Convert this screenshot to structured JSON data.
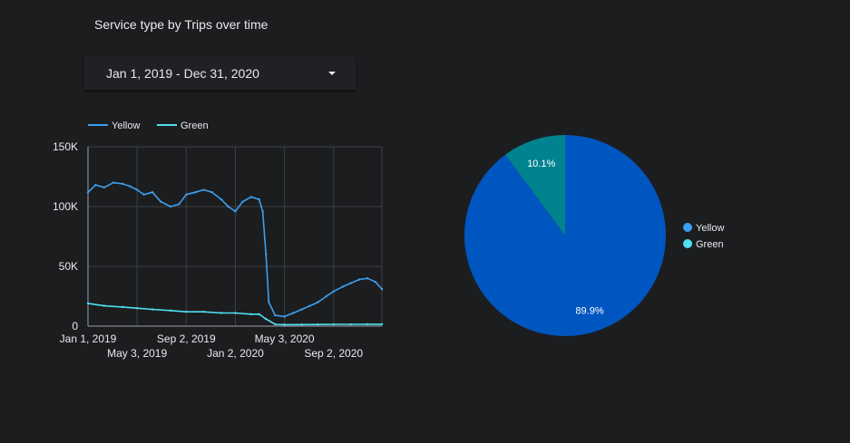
{
  "header": {
    "title": "Service type by Trips over time"
  },
  "date_range": {
    "value": "Jan 1, 2019 - Dec 31, 2020"
  },
  "colors": {
    "yellow": "#3d9ff0",
    "green": "#4fe0f2",
    "pie_yellow": "#0056c0",
    "pie_green": "#00838f",
    "grid": "#3c4043",
    "background": "#1c1d1f"
  },
  "chart_data": [
    {
      "type": "line",
      "title": "",
      "legend_position": "top-left",
      "grid": true,
      "ylim": [
        0,
        150000
      ],
      "x_range": [
        "2019-01-01",
        "2020-12-31"
      ],
      "y_ticks": [
        0,
        50000,
        100000,
        150000
      ],
      "y_tick_labels": [
        "0",
        "50K",
        "100K",
        "150K"
      ],
      "x_ticks_row1": [
        {
          "date": "2019-01-01",
          "label": "Jan 1, 2019"
        },
        {
          "date": "2019-09-02",
          "label": "Sep 2, 2019"
        },
        {
          "date": "2020-05-03",
          "label": "May 3, 2020"
        }
      ],
      "x_ticks_row2": [
        {
          "date": "2019-05-03",
          "label": "May 3, 2019"
        },
        {
          "date": "2020-01-02",
          "label": "Jan 2, 2020"
        },
        {
          "date": "2020-09-02",
          "label": "Sep 2, 2020"
        }
      ],
      "series": [
        {
          "name": "Yellow",
          "x": [
            "2019-01-01",
            "2019-01-20",
            "2019-02-10",
            "2019-03-05",
            "2019-03-28",
            "2019-04-15",
            "2019-05-03",
            "2019-05-20",
            "2019-06-10",
            "2019-07-01",
            "2019-07-25",
            "2019-08-15",
            "2019-09-02",
            "2019-09-25",
            "2019-10-15",
            "2019-11-05",
            "2019-11-28",
            "2019-12-15",
            "2020-01-02",
            "2020-01-20",
            "2020-02-10",
            "2020-03-01",
            "2020-03-10",
            "2020-03-18",
            "2020-03-25",
            "2020-04-10",
            "2020-05-03",
            "2020-05-25",
            "2020-06-15",
            "2020-07-05",
            "2020-07-25",
            "2020-08-15",
            "2020-09-02",
            "2020-09-25",
            "2020-10-15",
            "2020-11-05",
            "2020-11-25",
            "2020-12-15",
            "2020-12-31"
          ],
          "values": [
            112000,
            118000,
            116000,
            120000,
            119000,
            117000,
            114000,
            110000,
            112000,
            104000,
            100000,
            102000,
            110000,
            112000,
            114000,
            112000,
            106000,
            100000,
            96000,
            104000,
            108000,
            106000,
            96000,
            60000,
            20000,
            9000,
            8000,
            11000,
            14000,
            17000,
            20000,
            25000,
            29000,
            33000,
            36000,
            39000,
            40000,
            37000,
            31000
          ]
        },
        {
          "name": "Green",
          "x": [
            "2019-01-01",
            "2019-02-10",
            "2019-03-28",
            "2019-05-03",
            "2019-06-10",
            "2019-07-25",
            "2019-09-02",
            "2019-10-15",
            "2019-11-28",
            "2020-01-02",
            "2020-02-10",
            "2020-03-01",
            "2020-03-18",
            "2020-04-10",
            "2020-05-03",
            "2020-06-15",
            "2020-07-25",
            "2020-09-02",
            "2020-10-15",
            "2020-11-25",
            "2020-12-31"
          ],
          "values": [
            19000,
            17000,
            16000,
            15000,
            14000,
            13000,
            12000,
            12000,
            11000,
            11000,
            10000,
            10000,
            6000,
            1500,
            1200,
            1300,
            1400,
            1500,
            1500,
            1600,
            1600
          ]
        }
      ]
    },
    {
      "type": "pie",
      "legend_position": "right",
      "labels": [
        "Yellow",
        "Green"
      ],
      "values": [
        89.9,
        10.1
      ],
      "value_labels": [
        "89.9%",
        "10.1%"
      ]
    }
  ]
}
